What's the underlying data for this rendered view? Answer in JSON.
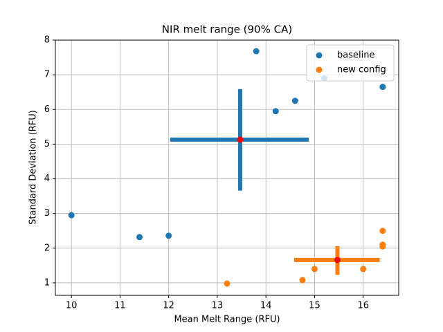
{
  "chart_data": {
    "type": "scatter",
    "title": "NIR melt range (90% CA)",
    "x_label": "Mean Melt Range (RFU)",
    "y_label": "Standard Deviation (RFU)",
    "xlim": [
      9.67,
      16.73
    ],
    "ylim": [
      0.64,
      8
    ],
    "xticks": [
      10,
      11,
      12,
      13,
      14,
      15,
      16
    ],
    "yticks": [
      1,
      2,
      3,
      4,
      5,
      6,
      7,
      8
    ],
    "grid": true,
    "legend": "upper right",
    "series": [
      {
        "name": "baseline",
        "color": "#1f77b4",
        "x": [
          10,
          11.4,
          12,
          13.8,
          14.2,
          14.6,
          15.2,
          16.4
        ],
        "values": [
          2.95,
          2.32,
          2.36,
          7.68,
          5.95,
          6.25,
          6.9,
          6.65
        ],
        "center": {
          "x": 13.47,
          "y": 5.13,
          "xerr": [
            1.44,
            1.41
          ],
          "yerr": [
            1.47,
            1.46
          ],
          "color": "#ff0000"
        }
      },
      {
        "name": "new config",
        "color": "#ff7f0e",
        "x": [
          13.2,
          14.75,
          15,
          16,
          16.4,
          16.4,
          16.4
        ],
        "values": [
          0.98,
          1.08,
          1.4,
          1.4,
          2.5,
          2.1,
          2.05
        ],
        "center": {
          "x": 15.47,
          "y": 1.66,
          "xerr": [
            0.89,
            0.87
          ],
          "yerr": [
            0.43,
            0.4
          ],
          "color": "#ff0000"
        }
      }
    ]
  }
}
